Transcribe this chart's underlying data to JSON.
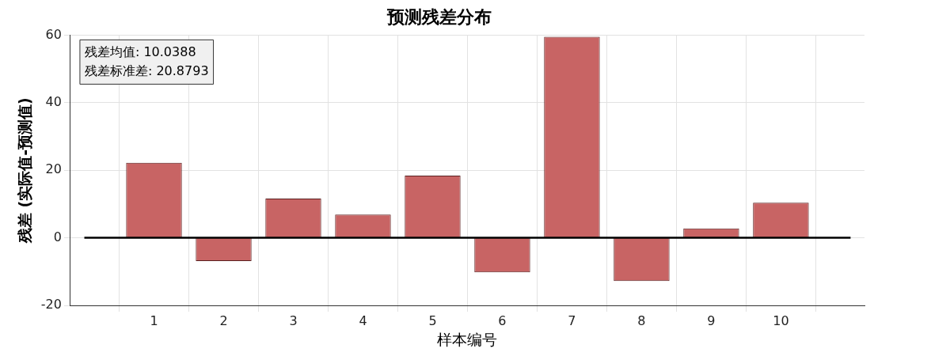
{
  "chart_data": {
    "type": "bar",
    "title": "预测残差分布",
    "xlabel": "样本编号",
    "ylabel": "残差 (实际值-预测值)",
    "x": [
      1,
      2,
      3,
      4,
      5,
      6,
      7,
      8,
      9,
      10
    ],
    "values": [
      22.2,
      -6.9,
      11.6,
      6.9,
      18.4,
      -10.2,
      59.5,
      -12.8,
      2.8,
      10.4
    ],
    "color": "#c86464",
    "xlim": [
      -0.2,
      11.2
    ],
    "xticks": [
      1,
      2,
      3,
      4,
      5,
      6,
      7,
      8,
      9,
      10
    ],
    "ylim": [
      -20,
      60
    ],
    "yticks": [
      -20,
      0,
      20,
      40,
      60
    ],
    "grid": true,
    "legend": false,
    "ref_lines": [
      {
        "axis": "y",
        "value": 0,
        "color": "#000000"
      }
    ],
    "annotations": [
      "残差均值: 10.0388",
      "残差标准差: 20.8793"
    ]
  }
}
